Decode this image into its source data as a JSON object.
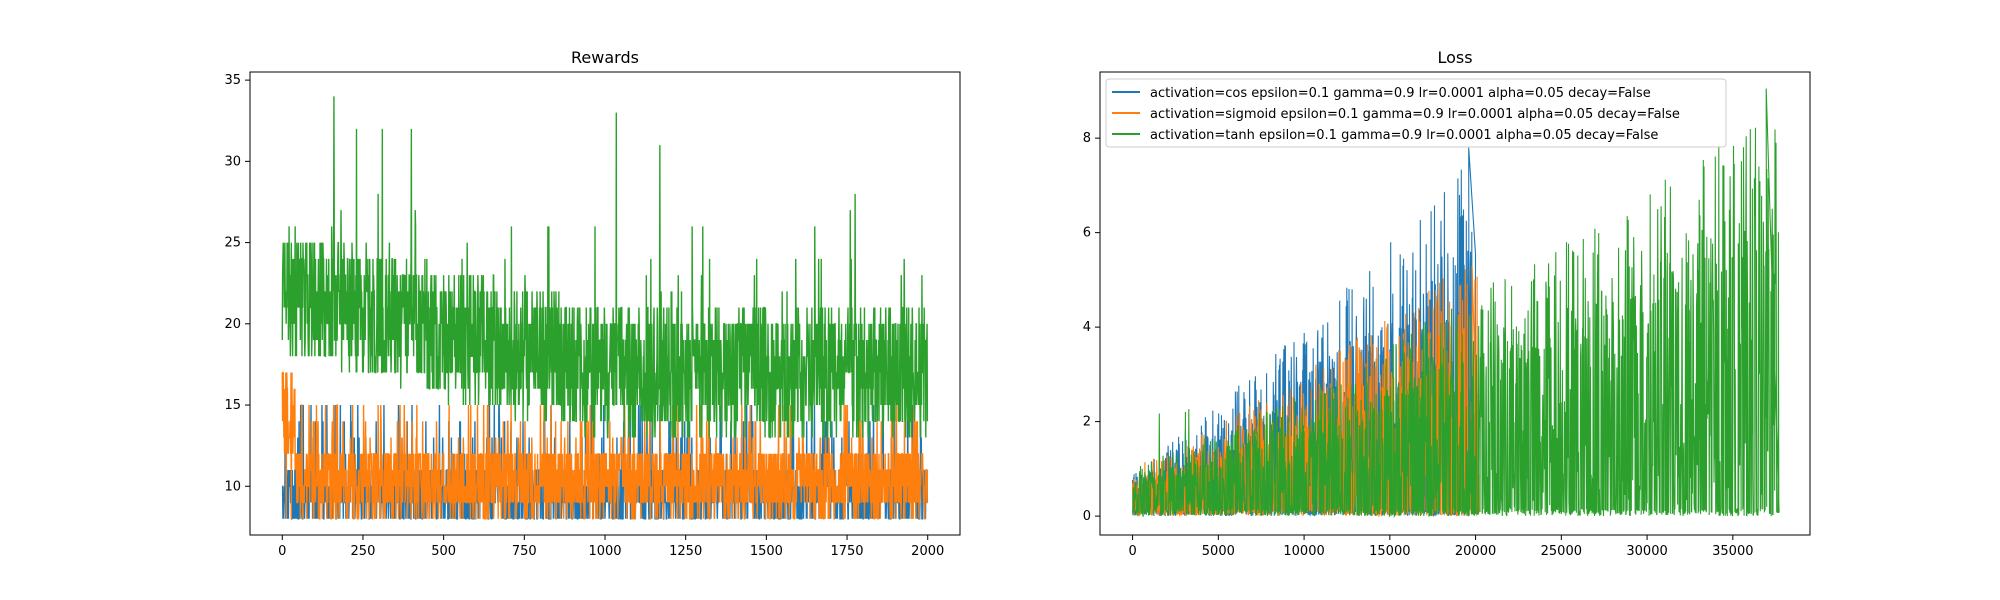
{
  "chart_data": [
    {
      "type": "line",
      "title": "Rewards",
      "xlabel": "",
      "ylabel": "",
      "xlim": [
        -100,
        2100
      ],
      "ylim": [
        7,
        35.5
      ],
      "xticks": [
        0,
        250,
        500,
        750,
        1000,
        1250,
        1500,
        1750,
        2000
      ],
      "yticks": [
        10,
        15,
        20,
        25,
        30,
        35
      ],
      "grid": false,
      "n_points": 2000,
      "series": [
        {
          "color": "#1f77b4",
          "description_values": {
            "min": 8,
            "typical_low": 8,
            "typical_high": 12,
            "max": 16
          }
        },
        {
          "color": "#ff7f0e",
          "description_values": {
            "min": 8,
            "typical_low": 9,
            "typical_high": 12,
            "max": 20
          }
        },
        {
          "color": "#2ca02c",
          "description_values": {
            "min": 13,
            "early_mean": 22,
            "late_mean": 17,
            "max": 34
          }
        }
      ],
      "spikes": [
        {
          "series": 2,
          "x": 160,
          "y": 34
        },
        {
          "series": 2,
          "x": 1035,
          "y": 33
        },
        {
          "series": 2,
          "x": 1170,
          "y": 31
        },
        {
          "series": 2,
          "x": 1775,
          "y": 28
        },
        {
          "series": 2,
          "x": 1760,
          "y": 27
        },
        {
          "series": 2,
          "x": 230,
          "y": 32
        },
        {
          "series": 2,
          "x": 310,
          "y": 32
        },
        {
          "series": 2,
          "x": 400,
          "y": 32
        }
      ]
    },
    {
      "type": "line",
      "title": "Loss",
      "xlabel": "",
      "ylabel": "",
      "xlim": [
        -1900,
        39500
      ],
      "ylim": [
        -0.4,
        9.4
      ],
      "xticks": [
        0,
        5000,
        10000,
        15000,
        20000,
        25000,
        30000,
        35000
      ],
      "yticks": [
        0,
        2,
        4,
        6,
        8
      ],
      "grid": false,
      "legend_location": "upper left",
      "series": [
        {
          "name": "activation=cos epsilon=0.1 gamma=0.9 lr=0.0001 alpha=0.05 decay=False",
          "color": "#1f77b4",
          "x_end": 20000,
          "envelope_start": 1.0,
          "envelope_end": 7.3,
          "peak": 7.8
        },
        {
          "name": "activation=sigmoid epsilon=0.1 gamma=0.9 lr=0.0001 alpha=0.05 decay=False",
          "color": "#ff7f0e",
          "x_end": 20200,
          "envelope_start": 1.0,
          "envelope_end": 5.3,
          "peak": 5.3
        },
        {
          "name": "activation=tanh epsilon=0.1 gamma=0.9 lr=0.0001 alpha=0.05 decay=False",
          "color": "#2ca02c",
          "x_end": 37700,
          "envelope_start": 1.0,
          "envelope_end": 8.3,
          "peak": 9.05
        }
      ]
    }
  ]
}
